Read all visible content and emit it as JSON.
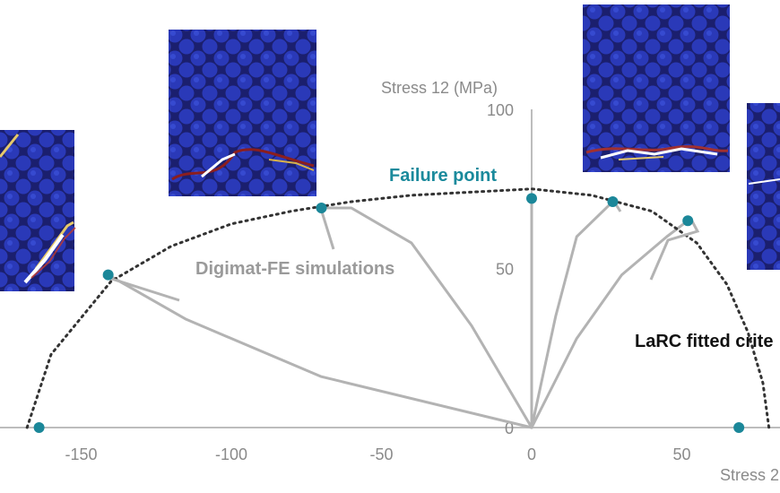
{
  "chart_data": {
    "type": "scatter",
    "xlabel": "Stress 2",
    "ylabel": "Stress 12 (MPa)",
    "xlim": [
      -175,
      80
    ],
    "ylim": [
      0,
      100
    ],
    "x_ticks": [
      -150,
      -100,
      -50,
      0,
      50
    ],
    "y_ticks": [
      0,
      50,
      100
    ],
    "series": [
      {
        "points": [
          {
            "x": -164,
            "y": 0
          },
          {
            "x": -141,
            "y": 48
          },
          {
            "x": -70,
            "y": 69
          },
          {
            "x": 0,
            "y": 72
          },
          {
            "x": 27,
            "y": 71
          },
          {
            "x": 52,
            "y": 65
          },
          {
            "x": 69,
            "y": 0
          }
        ]
      }
    ],
    "criterion_curve": [
      {
        "x": -168,
        "y": 0
      },
      {
        "x": -160,
        "y": 23
      },
      {
        "x": -140,
        "y": 46
      },
      {
        "x": -120,
        "y": 57
      },
      {
        "x": -100,
        "y": 64
      },
      {
        "x": -80,
        "y": 68
      },
      {
        "x": -60,
        "y": 71
      },
      {
        "x": -40,
        "y": 73
      },
      {
        "x": -20,
        "y": 74
      },
      {
        "x": 0,
        "y": 75
      },
      {
        "x": 20,
        "y": 73
      },
      {
        "x": 40,
        "y": 68
      },
      {
        "x": 55,
        "y": 58
      },
      {
        "x": 65,
        "y": 45
      },
      {
        "x": 72,
        "y": 30
      },
      {
        "x": 77,
        "y": 14
      },
      {
        "x": 79,
        "y": 0
      }
    ],
    "stress_paths": [
      [
        {
          "x": 0,
          "y": 0
        },
        {
          "x": -70,
          "y": 16
        },
        {
          "x": -115,
          "y": 34
        },
        {
          "x": -141,
          "y": 48
        }
      ],
      [
        {
          "x": 0,
          "y": 0
        },
        {
          "x": -20,
          "y": 32
        },
        {
          "x": -40,
          "y": 58
        },
        {
          "x": -60,
          "y": 69
        },
        {
          "x": -70,
          "y": 69
        }
      ],
      [
        {
          "x": 0,
          "y": 0
        },
        {
          "x": 0,
          "y": 72
        }
      ],
      [
        {
          "x": 0,
          "y": 0
        },
        {
          "x": 8,
          "y": 35
        },
        {
          "x": 15,
          "y": 60
        },
        {
          "x": 27,
          "y": 71
        }
      ],
      [
        {
          "x": 0,
          "y": 0
        },
        {
          "x": 15,
          "y": 28
        },
        {
          "x": 30,
          "y": 48
        },
        {
          "x": 45,
          "y": 60
        },
        {
          "x": 52,
          "y": 65
        }
      ]
    ],
    "annotations": {
      "failure_point": "Failure point",
      "simulations": "Digimat-FE simulations",
      "criterion": "LaRC fitted crite"
    },
    "colors": {
      "points": "#1b8799",
      "paths": "#b3b3b3",
      "criterion": "#333333",
      "axis": "#bdbdbd"
    }
  },
  "micrographs": [
    {
      "crack": "jagged-right"
    },
    {
      "crack": "lower-band"
    },
    {
      "crack": "bottom-band"
    },
    {
      "crack": "middle-band"
    }
  ]
}
